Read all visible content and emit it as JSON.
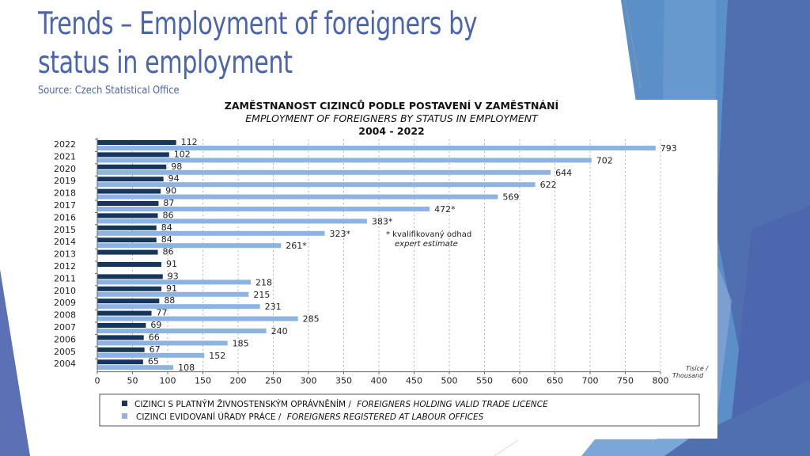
{
  "slide": {
    "title": "Trends – Employment of foreigners by status in employment",
    "title_line1": "Trends – Employment of foreigners by",
    "title_line2": "status in employment",
    "source": "Source: Czech Statistical Office"
  },
  "colors": {
    "title": "#4a65ae",
    "series_dark": "#17365d",
    "series_light": "#8db3e2",
    "deco_blue_1": "#5b8fc7",
    "deco_blue_2": "#4f6fb0",
    "deco_blue_3": "#7aa7d6"
  },
  "chart_data": {
    "type": "bar",
    "orientation": "horizontal",
    "title": "ZAMĚSTNANOST CIZINCŮ PODLE POSTAVENÍ V ZAMĚSTNÁNÍ",
    "subtitle": "EMPLOYMENT OF FOREIGNERS BY STATUS IN EMPLOYMENT",
    "period": "2004 - 2022",
    "xlabel": "Tisíce / Thousand",
    "ylabel": "",
    "xlim": [
      0,
      800
    ],
    "xticks": [
      0,
      50,
      100,
      150,
      200,
      250,
      300,
      350,
      400,
      450,
      500,
      550,
      600,
      650,
      700,
      750,
      800
    ],
    "grid": true,
    "legend_position": "bottom",
    "categories": [
      "2022",
      "2021",
      "2020",
      "2019",
      "2018",
      "2017",
      "2016",
      "2015",
      "2014",
      "2013",
      "2012",
      "2011",
      "2010",
      "2009",
      "2008",
      "2007",
      "2006",
      "2005",
      "2004"
    ],
    "series": [
      {
        "name": "CIZINCI S PLATNÝM ŽIVNOSTENSKÝM OPRÁVNĚNÍM / FOREIGNERS HOLDING VALID TRADE LICENCE",
        "label_cz": "CIZINCI S PLATNÝM ŽIVNOSTENSKÝM OPRÁVNĚNÍM /",
        "label_en": "FOREIGNERS HOLDING VALID TRADE LICENCE",
        "color": "#17365d",
        "values": [
          112,
          102,
          98,
          94,
          90,
          87,
          86,
          84,
          84,
          86,
          91,
          93,
          91,
          88,
          77,
          69,
          66,
          67,
          65
        ]
      },
      {
        "name": "CIZINCI EVIDOVANÍ ÚŘADY PRÁCE / FOREIGNERS REGISTERED AT LABOUR OFFICES",
        "label_cz": "CIZINCI EVIDOVANÍ ÚŘADY PRÁCE /",
        "label_en": "FOREIGNERS REGISTERED AT LABOUR OFFICES",
        "color": "#8db3e2",
        "values": [
          793,
          702,
          644,
          622,
          569,
          472,
          383,
          323,
          261,
          null,
          null,
          218,
          215,
          231,
          285,
          240,
          185,
          152,
          108
        ],
        "value_labels": [
          "793",
          "702",
          "644",
          "622",
          "569",
          "472*",
          "383*",
          "323*",
          "261*",
          "",
          "",
          "218",
          "215",
          "231",
          "285",
          "240",
          "185",
          "152",
          "108"
        ]
      }
    ],
    "annotations": [
      {
        "text": "* kvalifikovaný odhad",
        "near_x": 420,
        "near_year": "2015"
      },
      {
        "text": "expert estimate",
        "near_x": 420,
        "near_year": "2014"
      }
    ]
  }
}
